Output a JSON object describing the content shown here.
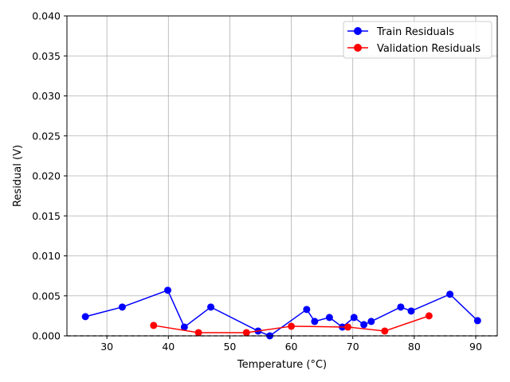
{
  "chart_data": {
    "type": "line",
    "title": "",
    "xlabel": "Temperature (°C)",
    "ylabel": "Residual (V)",
    "xlim": [
      23.5,
      93.5
    ],
    "ylim": [
      0.0,
      0.04
    ],
    "xticks": [
      30,
      40,
      50,
      60,
      70,
      80,
      90
    ],
    "yticks": [
      0.0,
      0.005,
      0.01,
      0.015,
      0.02,
      0.025,
      0.03,
      0.035,
      0.04
    ],
    "ytick_labels": [
      "0.000",
      "0.005",
      "0.010",
      "0.015",
      "0.020",
      "0.025",
      "0.030",
      "0.035",
      "0.040"
    ],
    "grid": true,
    "legend_position": "top-right",
    "reference_line": {
      "y": 0.0,
      "style": "dashed",
      "color": "#000000"
    },
    "series": [
      {
        "name": "Train Residuals",
        "color": "#0000ff",
        "marker": "circle",
        "points": [
          [
            26.5,
            0.0024
          ],
          [
            32.5,
            0.0036
          ],
          [
            39.9,
            0.0057
          ],
          [
            42.6,
            0.0011
          ],
          [
            46.9,
            0.0036
          ],
          [
            54.6,
            0.0006
          ],
          [
            56.5,
            0.0
          ],
          [
            62.5,
            0.0033
          ],
          [
            63.8,
            0.0018
          ],
          [
            66.2,
            0.0023
          ],
          [
            68.3,
            0.0011
          ],
          [
            70.2,
            0.0023
          ],
          [
            71.8,
            0.0014
          ],
          [
            73.0,
            0.0018
          ],
          [
            77.8,
            0.0036
          ],
          [
            79.5,
            0.0031
          ],
          [
            85.8,
            0.0052
          ],
          [
            90.3,
            0.0019
          ]
        ]
      },
      {
        "name": "Validation Residuals",
        "color": "#ff0000",
        "marker": "circle",
        "points": [
          [
            37.6,
            0.0013
          ],
          [
            44.9,
            0.0004
          ],
          [
            52.7,
            0.0004
          ],
          [
            60.0,
            0.0012
          ],
          [
            69.2,
            0.0011
          ],
          [
            75.2,
            0.0006
          ],
          [
            82.4,
            0.0025
          ]
        ]
      }
    ]
  }
}
